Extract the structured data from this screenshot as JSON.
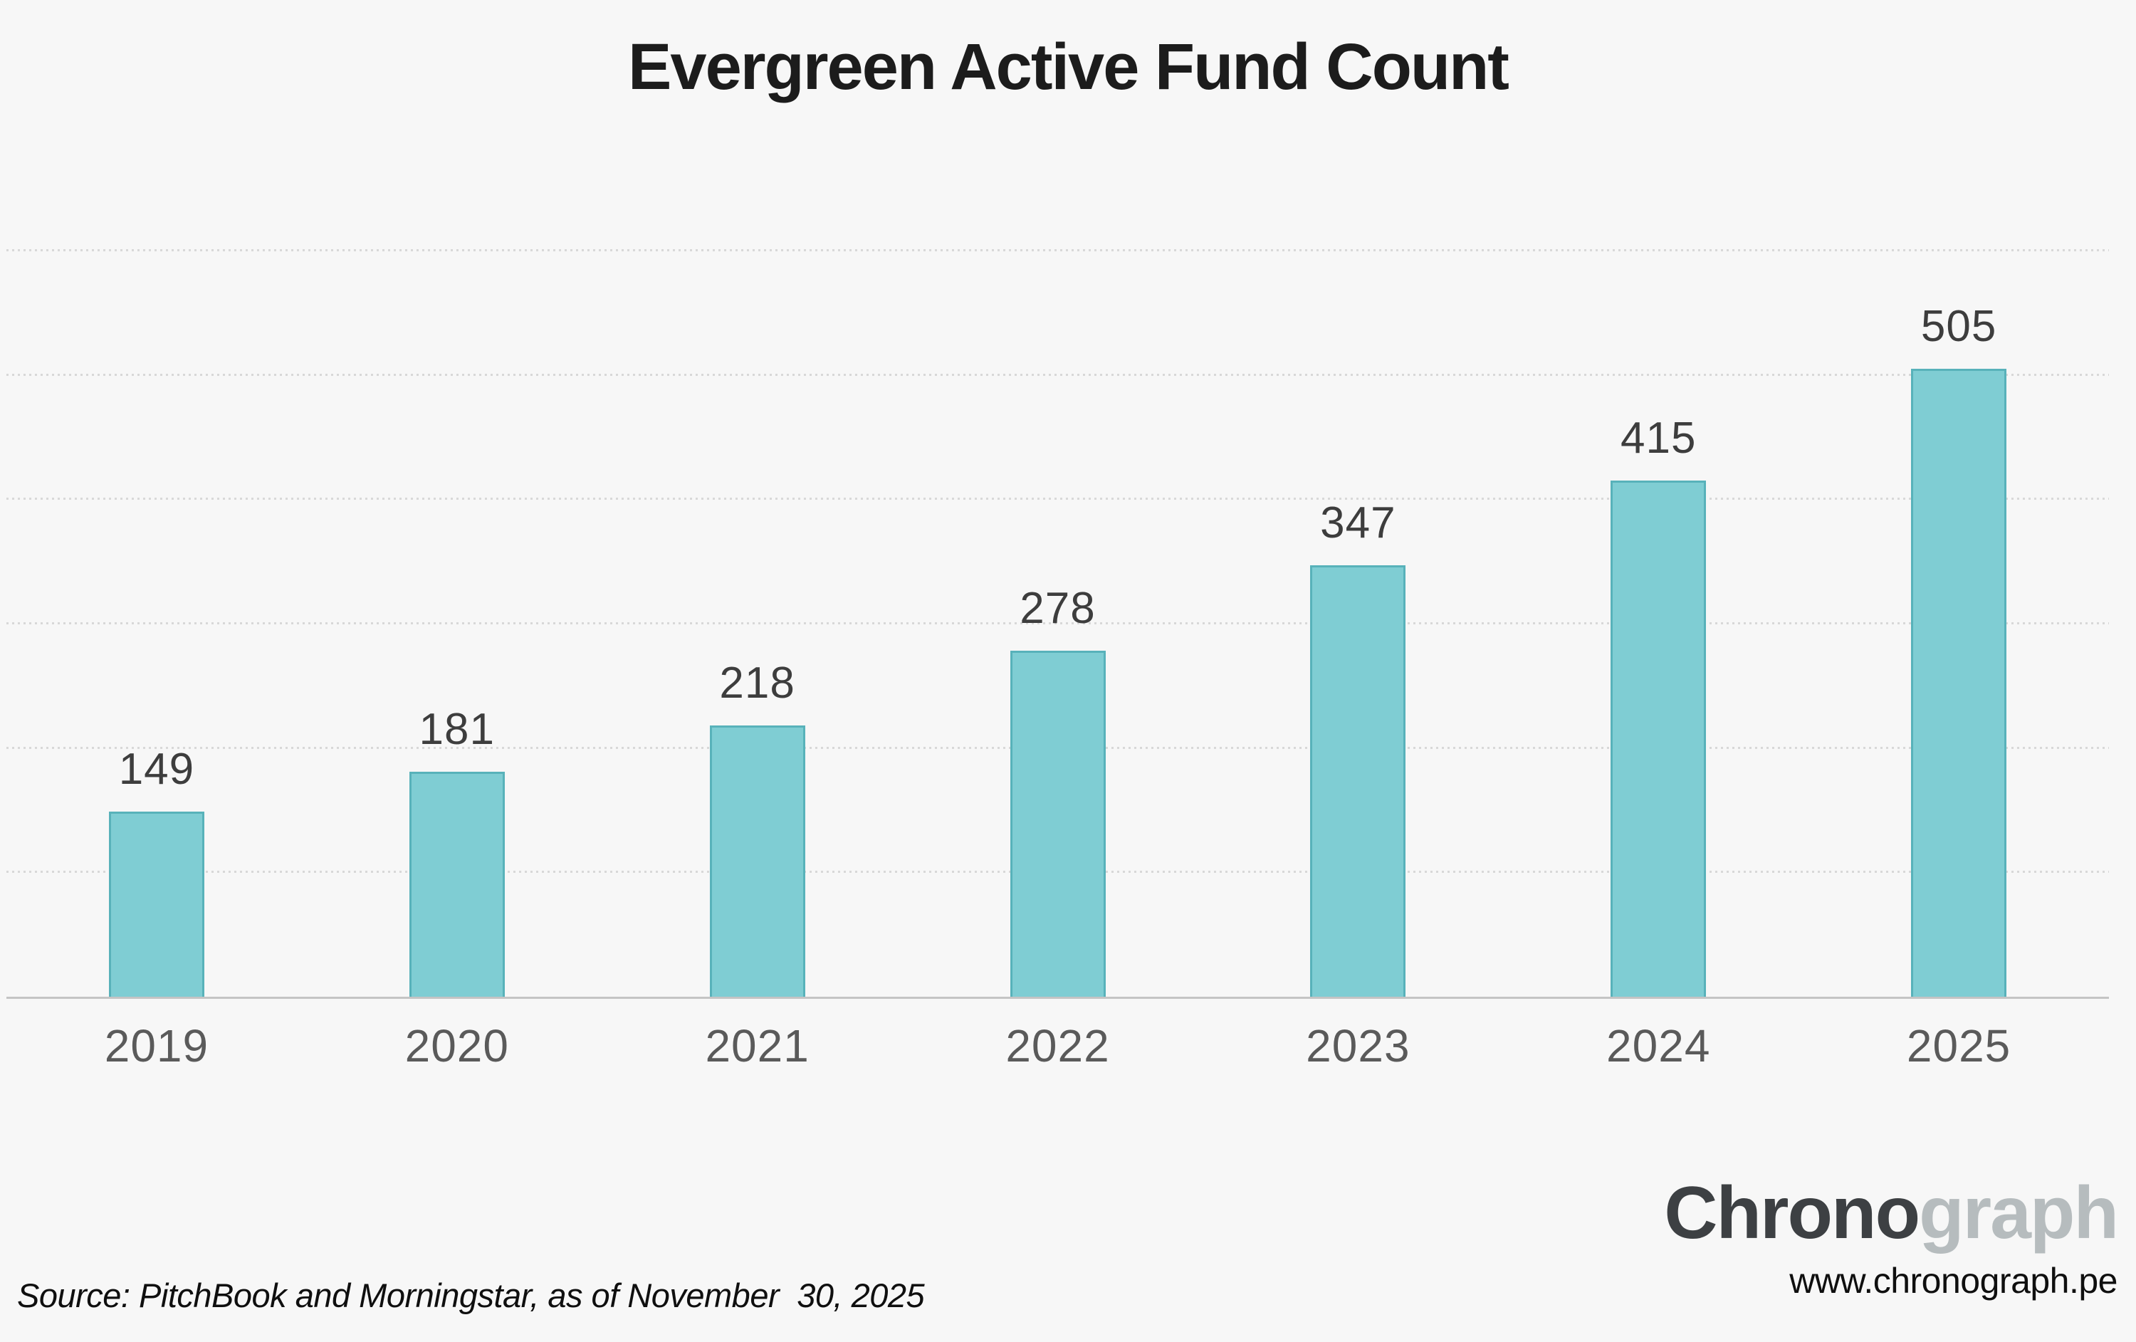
{
  "title": "Evergreen Active Fund Count",
  "source_note": "Source: PitchBook and Morningstar, as of November  30, 2025",
  "logo": {
    "part1": "Chrono",
    "part2": "graph",
    "url": "www.chronograph.pe"
  },
  "chart_data": {
    "type": "bar",
    "title": "Evergreen Active Fund Count",
    "categories": [
      "2019",
      "2020",
      "2021",
      "2022",
      "2023",
      "2024",
      "2025"
    ],
    "values": [
      149,
      181,
      218,
      278,
      347,
      415,
      505
    ],
    "xlabel": "",
    "ylabel": "",
    "ylim": [
      0,
      600
    ],
    "gridline_step": 100,
    "grid": "horizontal-dotted",
    "legend": "none",
    "data_labels": true
  },
  "colors": {
    "background": "#f7f7f7",
    "bar_fill": "#7fcdd3",
    "bar_border": "#58b2ba",
    "grid_line": "#d8d8d8",
    "axis_line": "#c4c4c4",
    "title_text": "#1c1c1c",
    "value_label_text": "#3d3d3d",
    "axis_label_text": "#5a5a5a",
    "logo_dark": "#3d4043",
    "logo_light": "#b6bcbe",
    "footer_text": "#0f0f0f"
  }
}
